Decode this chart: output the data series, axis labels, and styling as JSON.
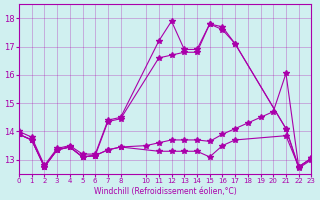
{
  "xlabel": "Windchill (Refroidissement éolien,°C)",
  "ylabel": "",
  "bg_color": "#d0f0f0",
  "line_color": "#aa00aa",
  "xlim": [
    0,
    23
  ],
  "ylim": [
    12.5,
    18.5
  ],
  "yticks": [
    13,
    14,
    15,
    16,
    17,
    18
  ],
  "xticks": [
    0,
    1,
    2,
    3,
    4,
    5,
    6,
    7,
    8,
    10,
    11,
    12,
    13,
    14,
    15,
    16,
    17,
    18,
    19,
    20,
    21,
    22,
    23
  ],
  "series1_x": [
    0,
    1,
    2,
    3,
    4,
    5,
    6,
    7,
    8,
    11,
    12,
    13,
    14,
    15,
    16,
    17,
    21,
    22,
    23
  ],
  "series1_y": [
    14.0,
    13.8,
    12.8,
    13.4,
    13.5,
    13.2,
    13.2,
    14.4,
    14.5,
    17.2,
    17.9,
    16.9,
    16.9,
    17.8,
    17.6,
    17.1,
    14.1,
    12.7,
    13.0
  ],
  "series2_x": [
    0,
    1,
    2,
    3,
    4,
    5,
    6,
    7,
    8,
    11,
    12,
    13,
    14,
    15,
    16,
    17,
    21,
    22,
    23
  ],
  "series2_y": [
    13.9,
    13.7,
    12.75,
    13.35,
    13.45,
    13.1,
    13.15,
    13.35,
    13.45,
    13.3,
    13.3,
    13.3,
    13.3,
    13.1,
    13.5,
    13.7,
    13.85,
    12.75,
    13.05
  ],
  "series3_x": [
    0,
    1,
    2,
    3,
    4,
    5,
    6,
    7,
    8,
    10,
    11,
    12,
    13,
    14,
    15,
    16,
    17,
    18,
    19,
    20,
    21,
    22,
    23
  ],
  "series3_y": [
    13.9,
    13.7,
    12.75,
    13.35,
    13.45,
    13.1,
    13.15,
    13.35,
    13.45,
    13.5,
    13.6,
    13.7,
    13.7,
    13.7,
    13.65,
    13.9,
    14.1,
    14.3,
    14.5,
    14.7,
    16.05,
    12.75,
    13.05
  ],
  "series4_x": [
    0,
    1,
    2,
    3,
    4,
    5,
    6,
    7,
    8,
    11,
    12,
    13,
    14,
    15,
    16,
    17,
    21,
    22,
    23
  ],
  "series4_y": [
    13.9,
    13.7,
    12.75,
    13.35,
    13.45,
    13.1,
    13.15,
    14.35,
    14.45,
    16.6,
    16.7,
    16.8,
    16.8,
    17.8,
    17.7,
    17.1,
    14.1,
    12.75,
    13.05
  ]
}
